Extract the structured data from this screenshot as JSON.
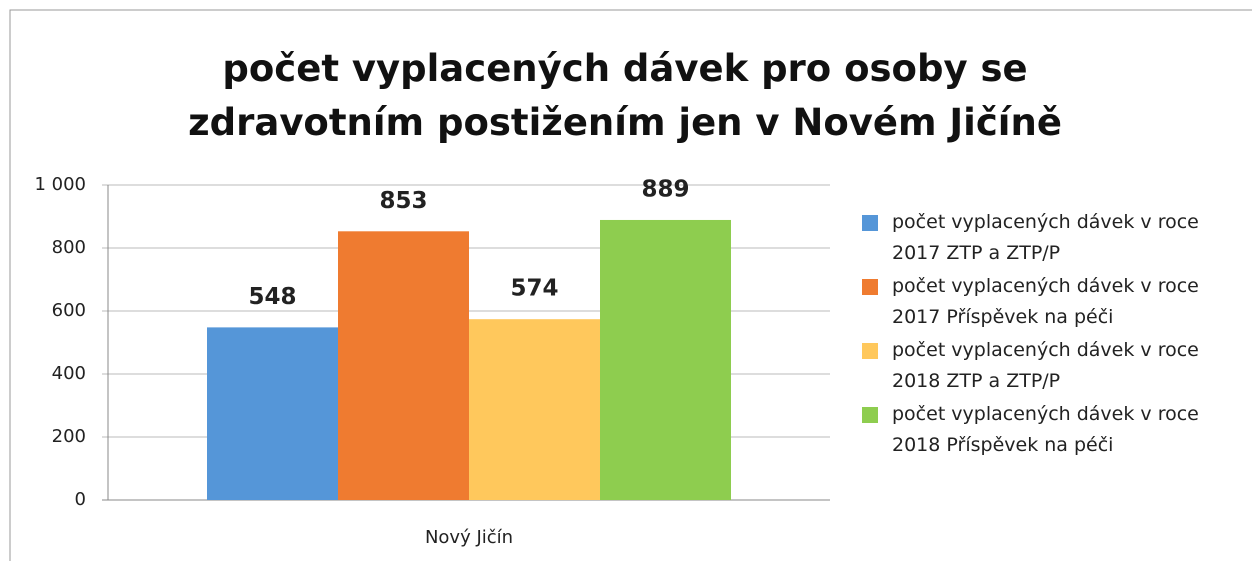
{
  "chart_data": {
    "type": "bar",
    "title": "počet vyplacených dávek pro osoby se zdravotním postižením jen v Novém Jičíně",
    "categories": [
      "Nový Jičín"
    ],
    "series": [
      {
        "name": "počet vyplacených dávek v roce 2017 ZTP a ZTP/P",
        "color": "#5596d8",
        "values": [
          548
        ]
      },
      {
        "name": "počet vyplacených dávek v roce 2017 Příspěvek na péči",
        "color": "#ef7b30",
        "values": [
          853
        ]
      },
      {
        "name": "počet vyplacených dávek v roce 2018 ZTP a ZTP/P",
        "color": "#ffc85c",
        "values": [
          574
        ]
      },
      {
        "name": "počet vyplacených dávek v roce 2018 Příspěvek na péči",
        "color": "#8ecd4f",
        "values": [
          889
        ]
      }
    ],
    "ylim": [
      0,
      1000
    ],
    "yticks": [
      0,
      200,
      400,
      600,
      800,
      {
        "value": 1000,
        "label": "1 000"
      }
    ],
    "grid": true,
    "legend": "right"
  }
}
